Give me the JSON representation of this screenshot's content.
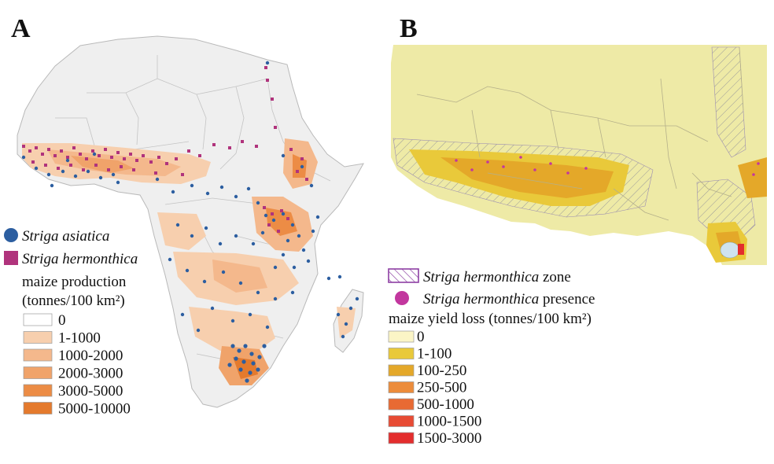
{
  "panel_a": {
    "letter": "A",
    "species_legend": [
      {
        "name": "Striga asiatica",
        "color": "#2c5ea0",
        "shape": "circle"
      },
      {
        "name": "Striga hermonthica",
        "color": "#b0337c",
        "shape": "square"
      }
    ],
    "scale_title_line1": "maize production",
    "scale_title_line2": "(tonnes/100 km²)",
    "scale": [
      {
        "label": "0",
        "color": "#ffffff"
      },
      {
        "label": "1-1000",
        "color": "#f7cfae"
      },
      {
        "label": "1000-2000",
        "color": "#f4b88c"
      },
      {
        "label": "2000-3000",
        "color": "#f0a36a"
      },
      {
        "label": "3000-5000",
        "color": "#ec8c45"
      },
      {
        "label": "5000-10000",
        "color": "#e47a2d"
      }
    ]
  },
  "panel_b": {
    "letter": "B",
    "zone_species": "Striga hermonthica",
    "zone_suffix": " zone",
    "presence_species": "Striga hermonthica",
    "presence_suffix": " presence",
    "zone_color": "#8d3fa3",
    "presence_color": "#c2379e",
    "scale_title": "maize yield loss (tonnes/100 km²)",
    "scale": [
      {
        "label": "0",
        "color": "#fbf5c6"
      },
      {
        "label": "1-100",
        "color": "#e9c93a"
      },
      {
        "label": "100-250",
        "color": "#e4a829"
      },
      {
        "label": "250-500",
        "color": "#ec8c3b"
      },
      {
        "label": "500-1000",
        "color": "#e86a33"
      },
      {
        "label": "1000-1500",
        "color": "#e74b34"
      },
      {
        "label": "1500-3000",
        "color": "#e32d2d"
      }
    ]
  }
}
